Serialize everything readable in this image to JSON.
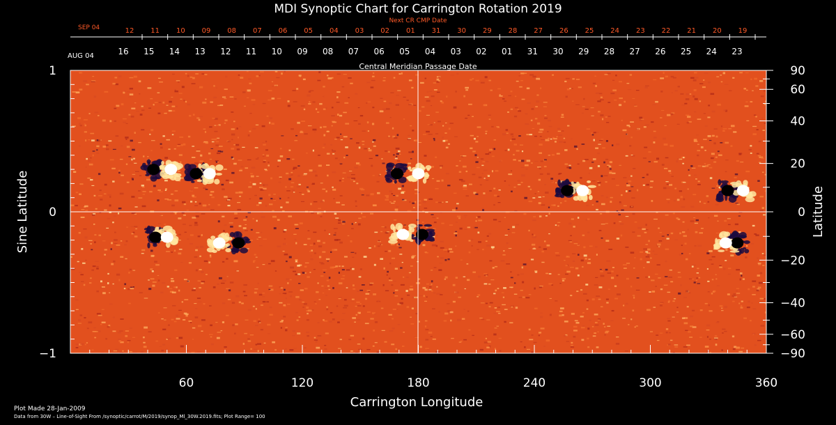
{
  "chart_data": {
    "type": "heatmap",
    "title": "MDI Synoptic Chart for Carrington Rotation 2019",
    "xlabel": "Carrington Longitude",
    "ylabel_left": "Sine Latitude",
    "ylabel_right": "Latitude",
    "xlim": [
      0,
      360
    ],
    "ylim": [
      -1,
      1
    ],
    "x_ticks": [
      60,
      120,
      180,
      240,
      300,
      360
    ],
    "y_ticks_left": [
      {
        "value": 1,
        "label": "1"
      },
      {
        "value": 0,
        "label": "0"
      },
      {
        "value": -1,
        "label": "−1"
      }
    ],
    "y_ticks_right": [
      {
        "deg": 90,
        "label": "90"
      },
      {
        "deg": 60,
        "label": "60"
      },
      {
        "deg": 40,
        "label": "40"
      },
      {
        "deg": 20,
        "label": "20"
      },
      {
        "deg": 0,
        "label": "0"
      },
      {
        "deg": -20,
        "label": "−20"
      },
      {
        "deg": -40,
        "label": "−40"
      },
      {
        "deg": -60,
        "label": "−60"
      },
      {
        "deg": -90,
        "label": "−90"
      }
    ],
    "next_cr_label": "Next CR CMP Date",
    "next_cr_month": "SEP 04",
    "next_cr_dates": [
      "12",
      "11",
      "10",
      "09",
      "08",
      "07",
      "06",
      "05",
      "04",
      "03",
      "02",
      "01",
      "31",
      "30",
      "29",
      "28",
      "27",
      "26",
      "25",
      "24",
      "23",
      "22",
      "21",
      "20",
      "19"
    ],
    "cmp_month": "AUG 04",
    "cmp_dates": [
      "16",
      "15",
      "14",
      "13",
      "12",
      "11",
      "10",
      "09",
      "08",
      "07",
      "06",
      "05",
      "04",
      "03",
      "02",
      "01",
      "31",
      "30",
      "29",
      "28",
      "27",
      "26",
      "25",
      "24",
      "23"
    ],
    "cmp_label": "Central Meridian Passage Date",
    "field_range_gauss": 100,
    "active_regions": [
      {
        "lon": 47,
        "sinlat": 0.3,
        "pos_lon": 52,
        "neg_lon": 43
      },
      {
        "lon": 68,
        "sinlat": 0.27,
        "pos_lon": 72,
        "neg_lon": 65
      },
      {
        "lon": 175,
        "sinlat": 0.27,
        "pos_lon": 180,
        "neg_lon": 169
      },
      {
        "lon": 262,
        "sinlat": 0.15,
        "pos_lon": 265,
        "neg_lon": 257
      },
      {
        "lon": 343,
        "sinlat": 0.15,
        "pos_lon": 348,
        "neg_lon": 340
      },
      {
        "lon": 52,
        "sinlat": -0.18,
        "pos_lon": 50,
        "neg_lon": 44
      },
      {
        "lon": 80,
        "sinlat": -0.22,
        "pos_lon": 77,
        "neg_lon": 87
      },
      {
        "lon": 178,
        "sinlat": -0.16,
        "pos_lon": 172,
        "neg_lon": 182
      },
      {
        "lon": 340,
        "sinlat": -0.22,
        "pos_lon": 339,
        "neg_lon": 345
      }
    ]
  },
  "footer": {
    "plot_made": "Plot Made 28-Jan-2009",
    "source": "Data from 30W – Line-of-Sight From /synoptic/carrot/M/2019/synop_Ml_30W.2019.fits; Plot Range= 100"
  },
  "colors": {
    "background": "#000000",
    "axis": "#ffffff",
    "next_cr": "#ff5a28",
    "field_base": "#e2501e",
    "field_bright": "#ffe6a0",
    "field_dark": "#1a0a40"
  }
}
